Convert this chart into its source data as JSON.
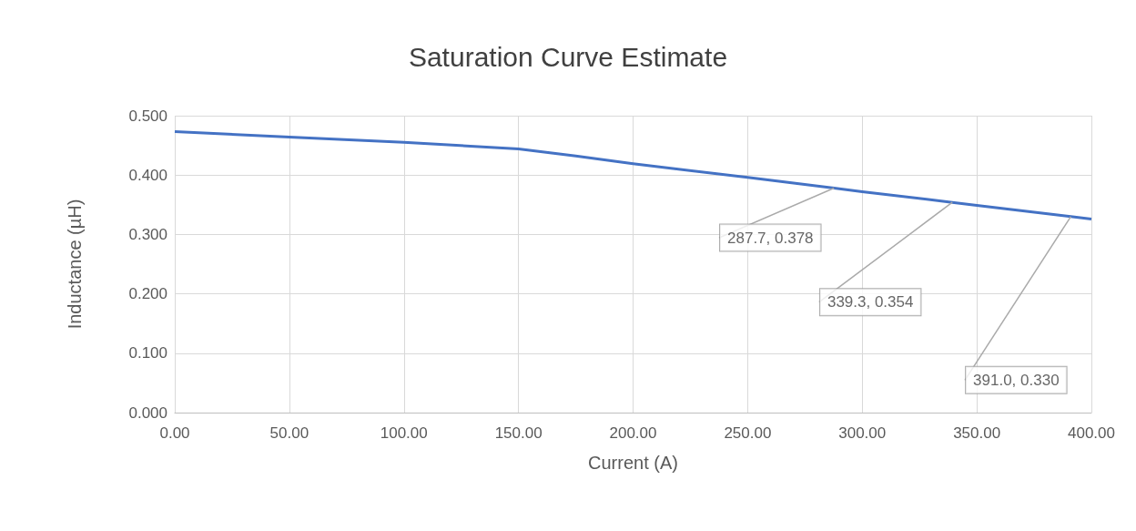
{
  "chart_data": {
    "type": "line",
    "title": "Saturation Curve Estimate",
    "xlabel": "Current (A)",
    "ylabel": "Inductance (µH)",
    "x": [
      0,
      50,
      100,
      150,
      175,
      200,
      250,
      287.7,
      300,
      339.3,
      350,
      391.0,
      400
    ],
    "series": [
      {
        "color": "#4472c4",
        "values": [
          0.473,
          0.464,
          0.455,
          0.444,
          0.432,
          0.419,
          0.396,
          0.378,
          0.372,
          0.354,
          0.349,
          0.33,
          0.326
        ]
      }
    ],
    "xlim": [
      0,
      400
    ],
    "xticks": [
      {
        "value": 0,
        "label": "0.00"
      },
      {
        "value": 50,
        "label": "50.00"
      },
      {
        "value": 100,
        "label": "100.00"
      },
      {
        "value": 150,
        "label": "150.00"
      },
      {
        "value": 200,
        "label": "200.00"
      },
      {
        "value": 250,
        "label": "250.00"
      },
      {
        "value": 300,
        "label": "300.00"
      },
      {
        "value": 350,
        "label": "350.00"
      },
      {
        "value": 400,
        "label": "400.00"
      }
    ],
    "ylim": [
      0,
      0.5
    ],
    "yticks": [
      {
        "value": 0,
        "label": "0.000"
      },
      {
        "value": 0.1,
        "label": "0.100"
      },
      {
        "value": 0.2,
        "label": "0.200"
      },
      {
        "value": 0.3,
        "label": "0.300"
      },
      {
        "value": 0.4,
        "label": "0.400"
      },
      {
        "value": 0.5,
        "label": "0.500"
      }
    ],
    "annotations": [
      {
        "text": "287.7, 0.378",
        "x": 287.7,
        "y": 0.378
      },
      {
        "text": "339.3, 0.354",
        "x": 339.3,
        "y": 0.354
      },
      {
        "text": "391.0, 0.330",
        "x": 391.0,
        "y": 0.33
      }
    ],
    "grid": true,
    "marker": "none",
    "line_style": "solid"
  }
}
